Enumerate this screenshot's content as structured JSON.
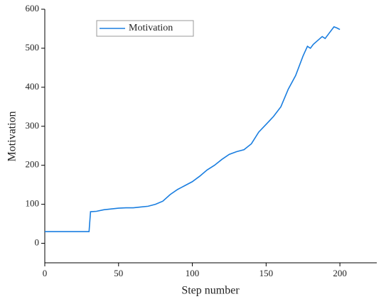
{
  "chart_data": {
    "type": "line",
    "xlabel": "Step number",
    "ylabel": "Motivation",
    "x": [
      0,
      5,
      10,
      15,
      20,
      25,
      30,
      31,
      35,
      40,
      45,
      50,
      55,
      60,
      65,
      70,
      75,
      80,
      85,
      90,
      95,
      100,
      105,
      110,
      115,
      120,
      125,
      130,
      135,
      140,
      145,
      150,
      155,
      160,
      165,
      170,
      175,
      178,
      180,
      182,
      185,
      188,
      190,
      193,
      196,
      198,
      200
    ],
    "series": [
      {
        "name": "Motivation",
        "color": "#1a7ee0",
        "values": [
          30,
          30,
          30,
          30,
          30,
          30,
          30,
          81,
          82,
          86,
          88,
          90,
          91,
          91,
          93,
          95,
          100,
          108,
          125,
          138,
          148,
          158,
          172,
          188,
          200,
          215,
          228,
          235,
          240,
          255,
          285,
          305,
          325,
          350,
          395,
          430,
          480,
          505,
          500,
          510,
          520,
          530,
          525,
          540,
          555,
          552,
          548
        ]
      }
    ],
    "xlim": [
      0,
      225
    ],
    "xticks": [
      0,
      50,
      100,
      150,
      200
    ],
    "ylim": [
      -50,
      600
    ],
    "yticks": [
      0,
      100,
      200,
      300,
      400,
      500,
      600
    ],
    "legend": "upper left"
  }
}
